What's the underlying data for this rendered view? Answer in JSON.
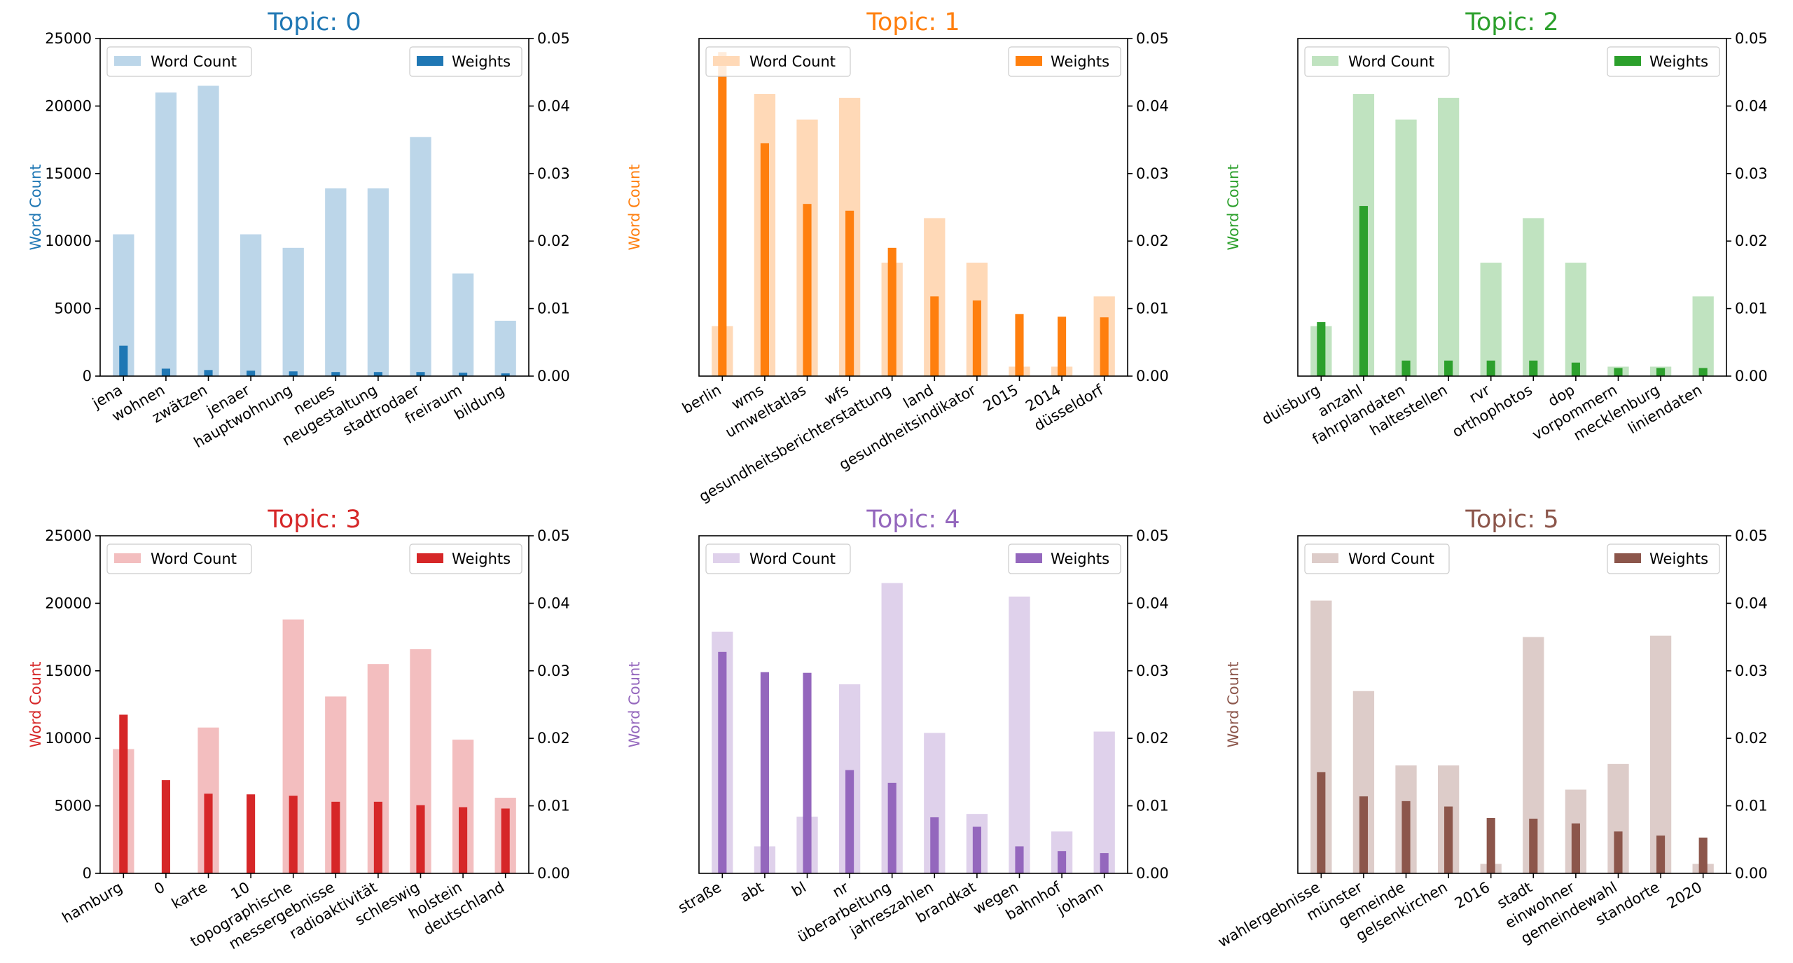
{
  "chart_data": [
    {
      "type": "bar",
      "title": "Topic: 0",
      "color": "#1f77b4",
      "ylabel": "Word Count",
      "ylim_left": [
        0,
        25000
      ],
      "ylim_right": [
        0,
        0.05
      ],
      "left_ticks": [
        "0",
        "5000",
        "10000",
        "15000",
        "20000",
        "25000"
      ],
      "right_ticks": [
        "0.00",
        "0.01",
        "0.02",
        "0.03",
        "0.04",
        "0.05"
      ],
      "legend_left": "Word Count",
      "legend_right": "Weights",
      "categories": [
        "jena",
        "wohnen",
        "zwätzen",
        "jenaer",
        "hauptwohnung",
        "neues",
        "neugestaltung",
        "stadtrodaer",
        "freiraum",
        "bildung"
      ],
      "series": [
        {
          "name": "Word Count",
          "axis": "left",
          "values": [
            10500,
            21000,
            21500,
            10500,
            9500,
            13900,
            13900,
            17700,
            7600,
            4100
          ]
        },
        {
          "name": "Weights",
          "axis": "right",
          "values": [
            0.0045,
            0.0011,
            0.0009,
            0.0008,
            0.0007,
            0.0006,
            0.0006,
            0.0006,
            0.0005,
            0.0004
          ]
        }
      ]
    },
    {
      "type": "bar",
      "title": "Topic: 1",
      "color": "#ff7f0e",
      "ylabel": "Word Count",
      "ylim_left": [
        0,
        25000
      ],
      "ylim_right": [
        0,
        0.05
      ],
      "left_ticks": [],
      "right_ticks": [
        "0.00",
        "0.01",
        "0.02",
        "0.03",
        "0.04",
        "0.05"
      ],
      "legend_left": "Word Count",
      "legend_right": "Weights",
      "categories": [
        "berlin",
        "wms",
        "umweltatlas",
        "wfs",
        "gesundheitsberichterstattung",
        "land",
        "gesundheitsindikator",
        "2015",
        "2014",
        "düsseldorf"
      ],
      "series": [
        {
          "name": "Word Count",
          "axis": "left",
          "values": [
            3700,
            20900,
            19000,
            20600,
            8400,
            11700,
            8400,
            700,
            700,
            5900
          ]
        },
        {
          "name": "Weights",
          "axis": "right",
          "values": [
            0.048,
            0.0345,
            0.0255,
            0.0245,
            0.019,
            0.0118,
            0.0112,
            0.0092,
            0.0088,
            0.0087
          ]
        }
      ]
    },
    {
      "type": "bar",
      "title": "Topic: 2",
      "color": "#2ca02c",
      "ylabel": "Word Count",
      "ylim_left": [
        0,
        25000
      ],
      "ylim_right": [
        0,
        0.05
      ],
      "left_ticks": [],
      "right_ticks": [
        "0.00",
        "0.01",
        "0.02",
        "0.03",
        "0.04",
        "0.05"
      ],
      "legend_left": "Word Count",
      "legend_right": "Weights",
      "categories": [
        "duisburg",
        "anzahl",
        "fahrplandaten",
        "haltestellen",
        "rvr",
        "orthophotos",
        "dop",
        "vorpommern",
        "mecklenburg",
        "liniendaten"
      ],
      "series": [
        {
          "name": "Word Count",
          "axis": "left",
          "values": [
            3700,
            20900,
            19000,
            20600,
            8400,
            11700,
            8400,
            700,
            700,
            5900
          ]
        },
        {
          "name": "Weights",
          "axis": "right",
          "values": [
            0.008,
            0.0252,
            0.0023,
            0.0023,
            0.0023,
            0.0023,
            0.002,
            0.0012,
            0.0012,
            0.0012
          ]
        }
      ]
    },
    {
      "type": "bar",
      "title": "Topic: 3",
      "color": "#d62728",
      "ylabel": "Word Count",
      "ylim_left": [
        0,
        25000
      ],
      "ylim_right": [
        0,
        0.05
      ],
      "left_ticks": [
        "0",
        "5000",
        "10000",
        "15000",
        "20000",
        "25000"
      ],
      "right_ticks": [
        "0.00",
        "0.01",
        "0.02",
        "0.03",
        "0.04",
        "0.05"
      ],
      "legend_left": "Word Count",
      "legend_right": "Weights",
      "categories": [
        "hamburg",
        "0",
        "karte",
        "10",
        "topographische",
        "messergebnisse",
        "radioaktivität",
        "schleswig",
        "holstein",
        "deutschland"
      ],
      "series": [
        {
          "name": "Word Count",
          "axis": "left",
          "values": [
            9200,
            0,
            10800,
            0,
            18800,
            13100,
            15500,
            16600,
            9900,
            5600
          ]
        },
        {
          "name": "Weights",
          "axis": "right",
          "values": [
            0.0235,
            0.0138,
            0.0118,
            0.0117,
            0.0115,
            0.0106,
            0.0106,
            0.0101,
            0.0098,
            0.0096
          ]
        }
      ]
    },
    {
      "type": "bar",
      "title": "Topic: 4",
      "color": "#9467bd",
      "ylabel": "Word Count",
      "ylim_left": [
        0,
        25000
      ],
      "ylim_right": [
        0,
        0.05
      ],
      "left_ticks": [],
      "right_ticks": [
        "0.00",
        "0.01",
        "0.02",
        "0.03",
        "0.04",
        "0.05"
      ],
      "legend_left": "Word Count",
      "legend_right": "Weights",
      "categories": [
        "straße",
        "abt",
        "bl",
        "nr",
        "überarbeitung",
        "jahreszahlen",
        "brandkat",
        "wegen",
        "bahnhof",
        "johann"
      ],
      "series": [
        {
          "name": "Word Count",
          "axis": "left",
          "values": [
            17900,
            2000,
            4200,
            14000,
            21500,
            10400,
            4400,
            20500,
            3100,
            10500
          ]
        },
        {
          "name": "Weights",
          "axis": "right",
          "values": [
            0.0328,
            0.0298,
            0.0297,
            0.0153,
            0.0134,
            0.0083,
            0.0069,
            0.004,
            0.0033,
            0.003
          ]
        }
      ]
    },
    {
      "type": "bar",
      "title": "Topic: 5",
      "color": "#8c564b",
      "ylabel": "Word Count",
      "ylim_left": [
        0,
        25000
      ],
      "ylim_right": [
        0,
        0.05
      ],
      "left_ticks": [],
      "right_ticks": [
        "0.00",
        "0.01",
        "0.02",
        "0.03",
        "0.04",
        "0.05"
      ],
      "legend_left": "Word Count",
      "legend_right": "Weights",
      "categories": [
        "wahlergebnisse",
        "münster",
        "gemeinde",
        "gelsenkirchen",
        "2016",
        "stadt",
        "einwohner",
        "gemeindewahl",
        "standorte",
        "2020"
      ],
      "series": [
        {
          "name": "Word Count",
          "axis": "left",
          "values": [
            20200,
            13500,
            8000,
            8000,
            700,
            17500,
            6200,
            8100,
            17600,
            700
          ]
        },
        {
          "name": "Weights",
          "axis": "right",
          "values": [
            0.015,
            0.0114,
            0.0107,
            0.0099,
            0.0082,
            0.0081,
            0.0074,
            0.0062,
            0.0056,
            0.0053
          ]
        }
      ]
    }
  ]
}
